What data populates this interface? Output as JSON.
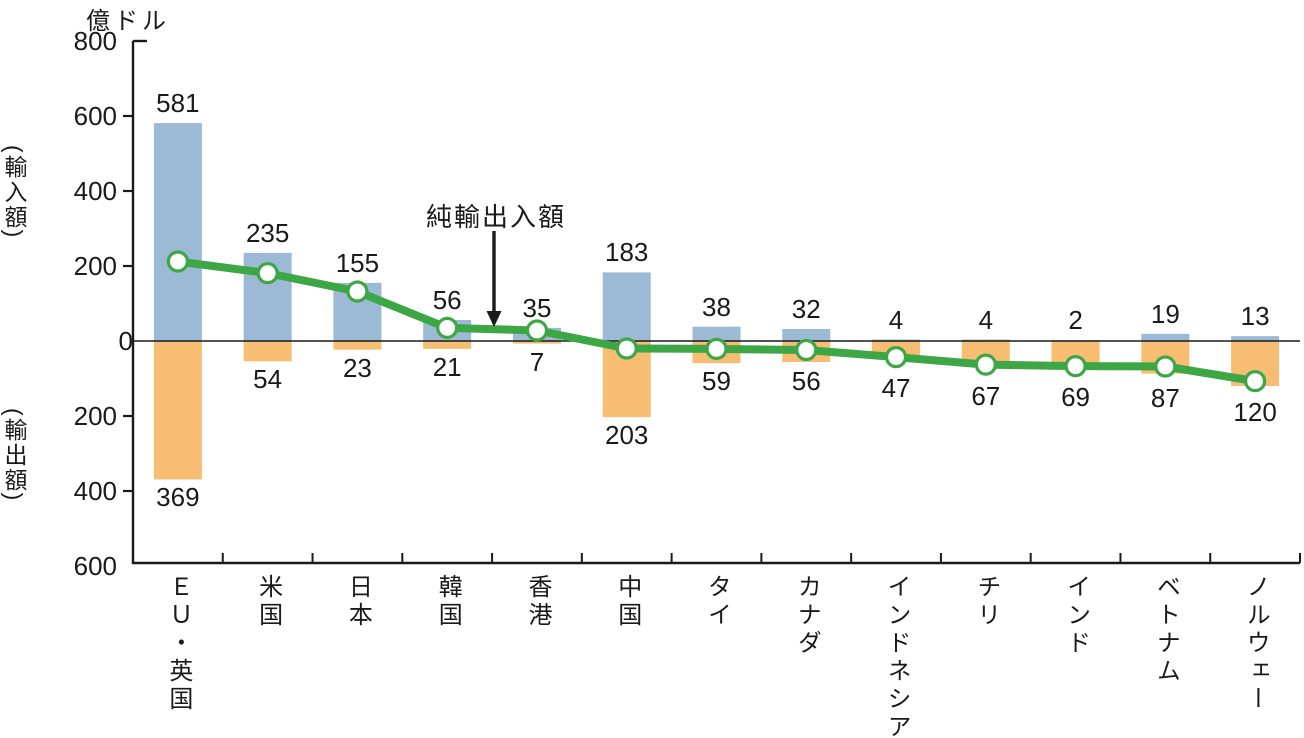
{
  "chart_data": {
    "type": "combo-bar-line",
    "title": "",
    "unit_label": "億ドル",
    "left_axis_upper_label": "(輸入額)",
    "left_axis_lower_label": "(輸出額)",
    "line_label": "純輸出入額",
    "categories": [
      "ＥＵ・英国",
      "米国",
      "日本",
      "韓国",
      "香港",
      "中国",
      "タイ",
      "カナダ",
      "インドネシア",
      "チリ",
      "インド",
      "ベトナム",
      "ノルウェー"
    ],
    "series": [
      {
        "name": "輸入額",
        "type": "bar",
        "direction": "up",
        "color": "#9cb9d6",
        "values": [
          581,
          235,
          155,
          56,
          35,
          183,
          38,
          32,
          4,
          4,
          2,
          19,
          13
        ]
      },
      {
        "name": "輸出額",
        "type": "bar",
        "direction": "down",
        "color": "#f6bd73",
        "values": [
          369,
          54,
          23,
          21,
          7,
          203,
          59,
          56,
          47,
          67,
          69,
          87,
          120
        ]
      },
      {
        "name": "純輸出入額",
        "type": "line",
        "color": "#3ea745",
        "marker": "circle-white",
        "values": [
          212,
          181,
          132,
          35,
          28,
          -20,
          -21,
          -24,
          -43,
          -63,
          -67,
          -68,
          -107
        ]
      }
    ],
    "y_axis": {
      "upper_tick_labels": [
        "800",
        "600",
        "400",
        "200"
      ],
      "zero_tick_label": "0",
      "lower_tick_labels": [
        "200",
        "400",
        "600"
      ],
      "max": 800,
      "min": -600,
      "grid": false
    },
    "legend_position": "none",
    "axis_color": "#1a1a1a",
    "text_color": "#1a1a1a"
  }
}
